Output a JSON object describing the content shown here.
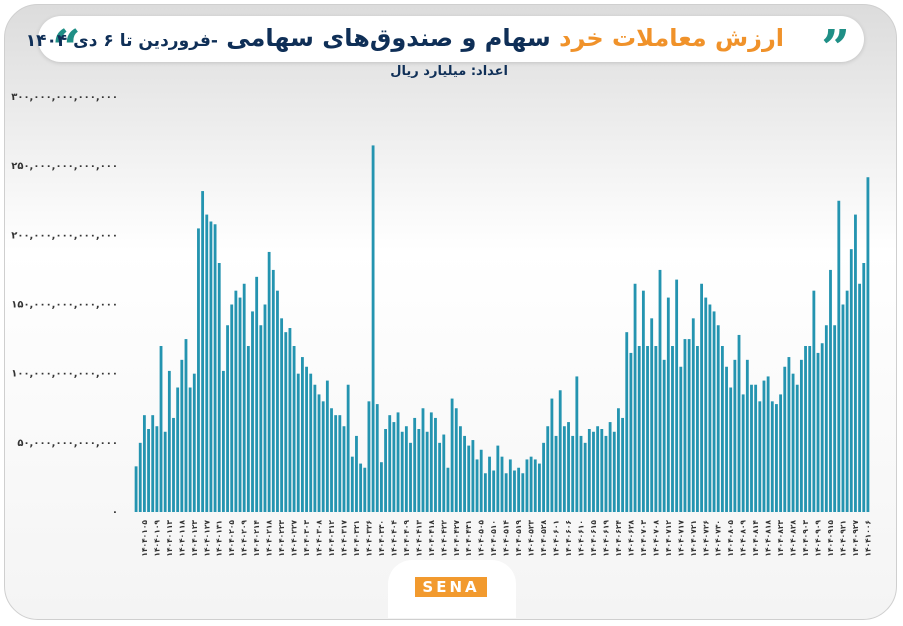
{
  "chart_data": {
    "type": "bar",
    "title": "ارزش معاملات خرد",
    "title_main": "سهام و صندوق‌های سهامی",
    "title_period": "-فروردین تا ۶ دی ۱۴۰۴",
    "subtitle": "اعداد: میلیارد ریال",
    "brand": "SENA",
    "color": "#2494b0",
    "ylim": [
      0,
      300000000000000
    ],
    "yticks": [
      {
        "value": 0,
        "label": "۰"
      },
      {
        "value": 50000000000000,
        "label": "۵۰,۰۰۰,۰۰۰,۰۰۰,۰۰۰"
      },
      {
        "value": 100000000000000,
        "label": "۱۰۰,۰۰۰,۰۰۰,۰۰۰,۰۰۰"
      },
      {
        "value": 150000000000000,
        "label": "۱۵۰,۰۰۰,۰۰۰,۰۰۰,۰۰۰"
      },
      {
        "value": 200000000000000,
        "label": "۲۰۰,۰۰۰,۰۰۰,۰۰۰,۰۰۰"
      },
      {
        "value": 250000000000000,
        "label": "۲۵۰,۰۰۰,۰۰۰,۰۰۰,۰۰۰"
      },
      {
        "value": 300000000000000,
        "label": "۳۰۰,۰۰۰,۰۰۰,۰۰۰,۰۰۰"
      }
    ],
    "categories": [
      null,
      null,
      "۱۴۰۴۰۱۰۵",
      null,
      null,
      "۱۴۰۴۰۱۰۹",
      null,
      null,
      "۱۴۰۴۰۱۱۳",
      null,
      null,
      "۱۴۰۴۰۱۱۸",
      null,
      null,
      "۱۴۰۴۰۱۲۳",
      null,
      null,
      "۱۴۰۴۰۱۲۷",
      null,
      null,
      "۱۴۰۴۰۱۳۱",
      null,
      null,
      "۱۴۰۴۰۲۰۵",
      null,
      null,
      "۱۴۰۴۰۲۰۹",
      null,
      null,
      "۱۴۰۴۰۲۱۴",
      null,
      null,
      "۱۴۰۴۰۲۱۸",
      null,
      null,
      "۱۴۰۴۰۲۲۳",
      null,
      null,
      "۱۴۰۴۰۲۲۷",
      null,
      null,
      "۱۴۰۴۰۳۰۳",
      null,
      null,
      "۱۴۰۴۰۳۰۸",
      null,
      null,
      "۱۴۰۴۰۳۱۲",
      null,
      null,
      "۱۴۰۴۰۳۱۷",
      null,
      null,
      "۱۴۰۴۰۳۲۱",
      null,
      null,
      "۱۴۰۴۰۳۲۶",
      null,
      null,
      "۱۴۰۴۰۳۳۰",
      null,
      null,
      "۱۴۰۴۰۴۰۴",
      null,
      null,
      "۱۴۰۴۰۴۰۹",
      null,
      null,
      "۱۴۰۴۰۴۱۳",
      null,
      null,
      "۱۴۰۴۰۴۱۸",
      null,
      null,
      "۱۴۰۴۰۴۲۲",
      null,
      null,
      "۱۴۰۴۰۴۲۷",
      null,
      null,
      "۱۴۰۴۰۴۳۱",
      null,
      null,
      "۱۴۰۴۰۵۰۵",
      null,
      null,
      "۱۴۰۴۰۵۱۰",
      null,
      null,
      "۱۴۰۴۰۵۱۴",
      null,
      null,
      "۱۴۰۴۰۵۱۹",
      null,
      null,
      "۱۴۰۴۰۵۲۳",
      null,
      null,
      "۱۴۰۴۰۵۲۸",
      null,
      null,
      "۱۴۰۴۰۶۰۱",
      null,
      null,
      "۱۴۰۴۰۶۰۶",
      null,
      null,
      "۱۴۰۴۰۶۱۰",
      null,
      null,
      "۱۴۰۴۰۶۱۵",
      null,
      null,
      "۱۴۰۴۰۶۱۹",
      null,
      null,
      "۱۴۰۴۰۶۲۴",
      null,
      null,
      "۱۴۰۴۰۶۲۸",
      null,
      null,
      "۱۴۰۴۰۷۰۳",
      null,
      null,
      "۱۴۰۴۰۷۰۸",
      null,
      null,
      "۱۴۰۴۰۷۱۲",
      null,
      null,
      "۱۴۰۴۰۷۱۷",
      null,
      null,
      "۱۴۰۴۰۷۲۱",
      null,
      null,
      "۱۴۰۴۰۷۲۶",
      null,
      null,
      "۱۴۰۴۰۷۳۰",
      null,
      null,
      "۱۴۰۴۰۸۰۵",
      null,
      null,
      "۱۴۰۴۰۸۰۹",
      null,
      null,
      "۱۴۰۴۰۸۱۴",
      null,
      null,
      "۱۴۰۴۰۸۱۸",
      null,
      null,
      "۱۴۰۴۰۸۲۳",
      null,
      null,
      "۱۴۰۴۰۸۲۸",
      null,
      null,
      "۱۴۰۴۰۹۰۳",
      null,
      null,
      "۱۴۰۴۰۹۰۹",
      null,
      null,
      "۱۴۰۴۰۹۱۵",
      null,
      null,
      "۱۴۰۴۰۹۲۱",
      null,
      null,
      "۱۴۰۴۰۹۲۷",
      null,
      null,
      "۱۴۰۴۱۰۰۶"
    ],
    "values": [
      33000000000000.0,
      50000000000000.0,
      70000000000000.0,
      60000000000000.0,
      70000000000000.0,
      62000000000000.0,
      120000000000000.0,
      58000000000000.0,
      102000000000000.0,
      68000000000000.0,
      90000000000000.0,
      110000000000000.0,
      125000000000000.0,
      90000000000000.0,
      100000000000000.0,
      205000000000000.0,
      232000000000000.0,
      215000000000000.0,
      210000000000000.0,
      208000000000000.0,
      180000000000000.0,
      102000000000000.0,
      135000000000000.0,
      150000000000000.0,
      160000000000000.0,
      155000000000000.0,
      165000000000000.0,
      120000000000000.0,
      145000000000000.0,
      170000000000000.0,
      135000000000000.0,
      150000000000000.0,
      188000000000000.0,
      175000000000000.0,
      160000000000000.0,
      140000000000000.0,
      130000000000000.0,
      133000000000000.0,
      120000000000000.0,
      100000000000000.0,
      112000000000000.0,
      105000000000000.0,
      100000000000000.0,
      92000000000000.0,
      85000000000000.0,
      80000000000000.0,
      95000000000000.0,
      75000000000000.0,
      70000000000000.0,
      70000000000000.0,
      62000000000000.0,
      92000000000000.0,
      40000000000000.0,
      55000000000000.0,
      35000000000000.0,
      32000000000000.0,
      80000000000000.0,
      265000000000000.0,
      78000000000000.0,
      36000000000000.0,
      60000000000000.0,
      70000000000000.0,
      65000000000000.0,
      72000000000000.0,
      58000000000000.0,
      62000000000000.0,
      50000000000000.0,
      68000000000000.0,
      60000000000000.0,
      75000000000000.0,
      58000000000000.0,
      72000000000000.0,
      68000000000000.0,
      50000000000000.0,
      56000000000000.0,
      32000000000000.0,
      82000000000000.0,
      75000000000000.0,
      62000000000000.0,
      55000000000000.0,
      48000000000000.0,
      52000000000000.0,
      38000000000000.0,
      45000000000000.0,
      28000000000000.0,
      40000000000000.0,
      30000000000000.0,
      48000000000000.0,
      40000000000000.0,
      28000000000000.0,
      38000000000000.0,
      30000000000000.0,
      32000000000000.0,
      28000000000000.0,
      38000000000000.0,
      40000000000000.0,
      38000000000000.0,
      35000000000000.0,
      50000000000000.0,
      62000000000000.0,
      82000000000000.0,
      55000000000000.0,
      88000000000000.0,
      62000000000000.0,
      65000000000000.0,
      55000000000000.0,
      98000000000000.0,
      55000000000000.0,
      50000000000000.0,
      60000000000000.0,
      58000000000000.0,
      62000000000000.0,
      60000000000000.0,
      55000000000000.0,
      65000000000000.0,
      58000000000000.0,
      75000000000000.0,
      68000000000000.0,
      130000000000000.0,
      115000000000000.0,
      165000000000000.0,
      120000000000000.0,
      160000000000000.0,
      120000000000000.0,
      140000000000000.0,
      120000000000000.0,
      175000000000000.0,
      110000000000000.0,
      155000000000000.0,
      120000000000000.0,
      168000000000000.0,
      105000000000000.0,
      125000000000000.0,
      125000000000000.0,
      140000000000000.0,
      120000000000000.0,
      165000000000000.0,
      155000000000000.0,
      150000000000000.0,
      145000000000000.0,
      135000000000000.0,
      120000000000000.0,
      105000000000000.0,
      90000000000000.0,
      110000000000000.0,
      128000000000000.0,
      85000000000000.0,
      110000000000000.0,
      92000000000000.0,
      92000000000000.0,
      80000000000000.0,
      95000000000000.0,
      98000000000000.0,
      80000000000000.0,
      78000000000000.0,
      85000000000000.0,
      105000000000000.0,
      112000000000000.0,
      100000000000000.0,
      92000000000000.0,
      110000000000000.0,
      120000000000000.0,
      120000000000000.0,
      160000000000000.0,
      115000000000000.0,
      122000000000000.0,
      135000000000000.0,
      175000000000000.0,
      135000000000000.0,
      225000000000000.0,
      150000000000000.0,
      160000000000000.0,
      190000000000000.0,
      215000000000000.0,
      165000000000000.0,
      180000000000000.0,
      242000000000000.0
    ]
  }
}
